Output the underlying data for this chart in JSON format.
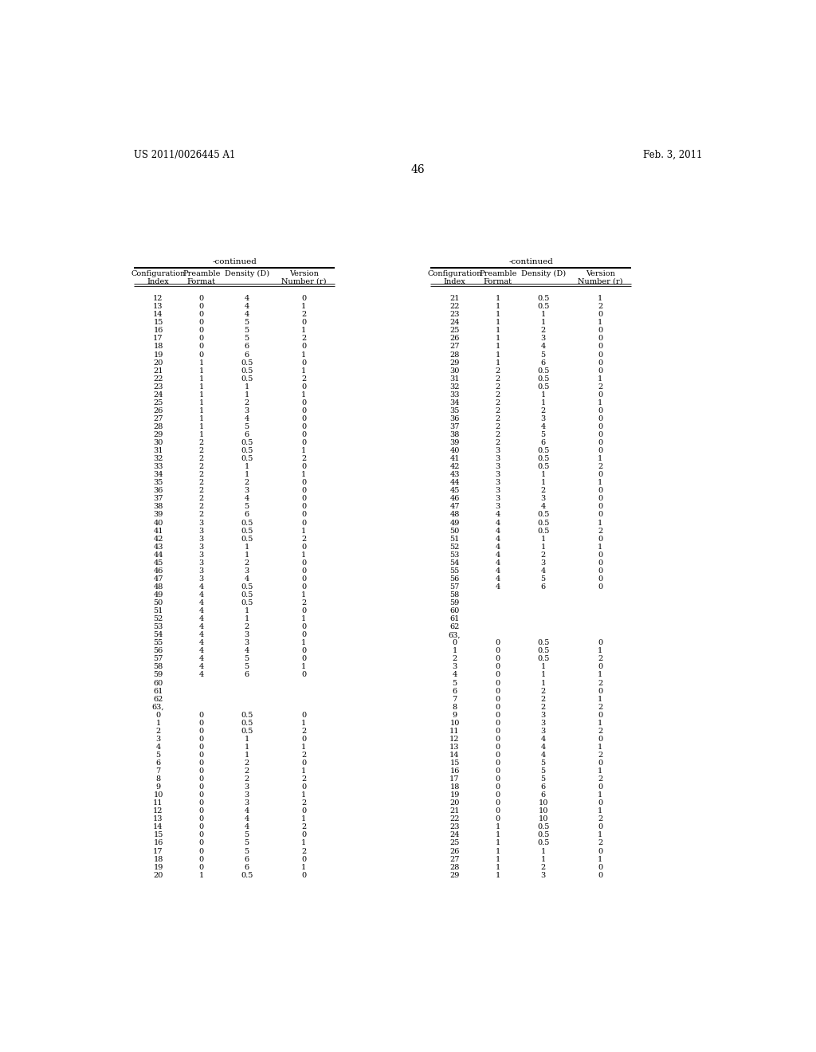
{
  "header_left": "US 2011/0026445 A1",
  "header_right": "Feb. 3, 2011",
  "page_number": "46",
  "continued_label": "-continued",
  "col_headers": [
    "Configuration\nIndex",
    "Preamble\nFormat",
    "Density (D)",
    "Version\nNumber (r)"
  ],
  "left_table_rows": [
    [
      "12",
      "0",
      "4",
      "0"
    ],
    [
      "13",
      "0",
      "4",
      "1"
    ],
    [
      "14",
      "0",
      "4",
      "2"
    ],
    [
      "15",
      "0",
      "5",
      "0"
    ],
    [
      "16",
      "0",
      "5",
      "1"
    ],
    [
      "17",
      "0",
      "5",
      "2"
    ],
    [
      "18",
      "0",
      "6",
      "0"
    ],
    [
      "19",
      "0",
      "6",
      "1"
    ],
    [
      "20",
      "1",
      "0.5",
      "0"
    ],
    [
      "21",
      "1",
      "0.5",
      "1"
    ],
    [
      "22",
      "1",
      "0.5",
      "2"
    ],
    [
      "23",
      "1",
      "1",
      "0"
    ],
    [
      "24",
      "1",
      "1",
      "1"
    ],
    [
      "25",
      "1",
      "2",
      "0"
    ],
    [
      "26",
      "1",
      "3",
      "0"
    ],
    [
      "27",
      "1",
      "4",
      "0"
    ],
    [
      "28",
      "1",
      "5",
      "0"
    ],
    [
      "29",
      "1",
      "6",
      "0"
    ],
    [
      "30",
      "2",
      "0.5",
      "0"
    ],
    [
      "31",
      "2",
      "0.5",
      "1"
    ],
    [
      "32",
      "2",
      "0.5",
      "2"
    ],
    [
      "33",
      "2",
      "1",
      "0"
    ],
    [
      "34",
      "2",
      "1",
      "1"
    ],
    [
      "35",
      "2",
      "2",
      "0"
    ],
    [
      "36",
      "2",
      "3",
      "0"
    ],
    [
      "37",
      "2",
      "4",
      "0"
    ],
    [
      "38",
      "2",
      "5",
      "0"
    ],
    [
      "39",
      "2",
      "6",
      "0"
    ],
    [
      "40",
      "3",
      "0.5",
      "0"
    ],
    [
      "41",
      "3",
      "0.5",
      "1"
    ],
    [
      "42",
      "3",
      "0.5",
      "2"
    ],
    [
      "43",
      "3",
      "1",
      "0"
    ],
    [
      "44",
      "3",
      "1",
      "1"
    ],
    [
      "45",
      "3",
      "2",
      "0"
    ],
    [
      "46",
      "3",
      "3",
      "0"
    ],
    [
      "47",
      "3",
      "4",
      "0"
    ],
    [
      "48",
      "4",
      "0.5",
      "0"
    ],
    [
      "49",
      "4",
      "0.5",
      "1"
    ],
    [
      "50",
      "4",
      "0.5",
      "2"
    ],
    [
      "51",
      "4",
      "1",
      "0"
    ],
    [
      "52",
      "4",
      "1",
      "1"
    ],
    [
      "53",
      "4",
      "2",
      "0"
    ],
    [
      "54",
      "4",
      "3",
      "0"
    ],
    [
      "55",
      "4",
      "3",
      "1"
    ],
    [
      "56",
      "4",
      "4",
      "0"
    ],
    [
      "57",
      "4",
      "5",
      "0"
    ],
    [
      "58",
      "4",
      "5",
      "1"
    ],
    [
      "59",
      "4",
      "6",
      "0"
    ],
    [
      "60",
      "",
      "",
      ""
    ],
    [
      "61",
      "",
      "",
      ""
    ],
    [
      "62",
      "",
      "",
      ""
    ],
    [
      "63,",
      "",
      "",
      ""
    ],
    [
      "0",
      "0",
      "0.5",
      "0"
    ],
    [
      "1",
      "0",
      "0.5",
      "1"
    ],
    [
      "2",
      "0",
      "0.5",
      "2"
    ],
    [
      "3",
      "0",
      "1",
      "0"
    ],
    [
      "4",
      "0",
      "1",
      "1"
    ],
    [
      "5",
      "0",
      "1",
      "2"
    ],
    [
      "6",
      "0",
      "2",
      "0"
    ],
    [
      "7",
      "0",
      "2",
      "1"
    ],
    [
      "8",
      "0",
      "2",
      "2"
    ],
    [
      "9",
      "0",
      "3",
      "0"
    ],
    [
      "10",
      "0",
      "3",
      "1"
    ],
    [
      "11",
      "0",
      "3",
      "2"
    ],
    [
      "12",
      "0",
      "4",
      "0"
    ],
    [
      "13",
      "0",
      "4",
      "1"
    ],
    [
      "14",
      "0",
      "4",
      "2"
    ],
    [
      "15",
      "0",
      "5",
      "0"
    ],
    [
      "16",
      "0",
      "5",
      "1"
    ],
    [
      "17",
      "0",
      "5",
      "2"
    ],
    [
      "18",
      "0",
      "6",
      "0"
    ],
    [
      "19",
      "0",
      "6",
      "1"
    ],
    [
      "20",
      "1",
      "0.5",
      "0"
    ]
  ],
  "right_table_rows": [
    [
      "21",
      "1",
      "0.5",
      "1"
    ],
    [
      "22",
      "1",
      "0.5",
      "2"
    ],
    [
      "23",
      "1",
      "1",
      "0"
    ],
    [
      "24",
      "1",
      "1",
      "1"
    ],
    [
      "25",
      "1",
      "2",
      "0"
    ],
    [
      "26",
      "1",
      "3",
      "0"
    ],
    [
      "27",
      "1",
      "4",
      "0"
    ],
    [
      "28",
      "1",
      "5",
      "0"
    ],
    [
      "29",
      "1",
      "6",
      "0"
    ],
    [
      "30",
      "2",
      "0.5",
      "0"
    ],
    [
      "31",
      "2",
      "0.5",
      "1"
    ],
    [
      "32",
      "2",
      "0.5",
      "2"
    ],
    [
      "33",
      "2",
      "1",
      "0"
    ],
    [
      "34",
      "2",
      "1",
      "1"
    ],
    [
      "35",
      "2",
      "2",
      "0"
    ],
    [
      "36",
      "2",
      "3",
      "0"
    ],
    [
      "37",
      "2",
      "4",
      "0"
    ],
    [
      "38",
      "2",
      "5",
      "0"
    ],
    [
      "39",
      "2",
      "6",
      "0"
    ],
    [
      "40",
      "3",
      "0.5",
      "0"
    ],
    [
      "41",
      "3",
      "0.5",
      "1"
    ],
    [
      "42",
      "3",
      "0.5",
      "2"
    ],
    [
      "43",
      "3",
      "1",
      "0"
    ],
    [
      "44",
      "3",
      "1",
      "1"
    ],
    [
      "45",
      "3",
      "2",
      "0"
    ],
    [
      "46",
      "3",
      "3",
      "0"
    ],
    [
      "47",
      "3",
      "4",
      "0"
    ],
    [
      "48",
      "4",
      "0.5",
      "0"
    ],
    [
      "49",
      "4",
      "0.5",
      "1"
    ],
    [
      "50",
      "4",
      "0.5",
      "2"
    ],
    [
      "51",
      "4",
      "1",
      "0"
    ],
    [
      "52",
      "4",
      "1",
      "1"
    ],
    [
      "53",
      "4",
      "2",
      "0"
    ],
    [
      "54",
      "4",
      "3",
      "0"
    ],
    [
      "55",
      "4",
      "4",
      "0"
    ],
    [
      "56",
      "4",
      "5",
      "0"
    ],
    [
      "57",
      "4",
      "6",
      "0"
    ],
    [
      "58",
      "",
      "",
      ""
    ],
    [
      "59",
      "",
      "",
      ""
    ],
    [
      "60",
      "",
      "",
      ""
    ],
    [
      "61",
      "",
      "",
      ""
    ],
    [
      "62",
      "",
      "",
      ""
    ],
    [
      "63,",
      "",
      "",
      ""
    ],
    [
      "0",
      "0",
      "0.5",
      "0"
    ],
    [
      "1",
      "0",
      "0.5",
      "1"
    ],
    [
      "2",
      "0",
      "0.5",
      "2"
    ],
    [
      "3",
      "0",
      "1",
      "0"
    ],
    [
      "4",
      "0",
      "1",
      "1"
    ],
    [
      "5",
      "0",
      "1",
      "2"
    ],
    [
      "6",
      "0",
      "2",
      "0"
    ],
    [
      "7",
      "0",
      "2",
      "1"
    ],
    [
      "8",
      "0",
      "2",
      "2"
    ],
    [
      "9",
      "0",
      "3",
      "0"
    ],
    [
      "10",
      "0",
      "3",
      "1"
    ],
    [
      "11",
      "0",
      "3",
      "2"
    ],
    [
      "12",
      "0",
      "4",
      "0"
    ],
    [
      "13",
      "0",
      "4",
      "1"
    ],
    [
      "14",
      "0",
      "4",
      "2"
    ],
    [
      "15",
      "0",
      "5",
      "0"
    ],
    [
      "16",
      "0",
      "5",
      "1"
    ],
    [
      "17",
      "0",
      "5",
      "2"
    ],
    [
      "18",
      "0",
      "6",
      "0"
    ],
    [
      "19",
      "0",
      "6",
      "1"
    ],
    [
      "20",
      "0",
      "10",
      "0"
    ],
    [
      "21",
      "0",
      "10",
      "1"
    ],
    [
      "22",
      "0",
      "10",
      "2"
    ],
    [
      "23",
      "1",
      "0.5",
      "0"
    ],
    [
      "24",
      "1",
      "0.5",
      "1"
    ],
    [
      "25",
      "1",
      "0.5",
      "2"
    ],
    [
      "26",
      "1",
      "1",
      "0"
    ],
    [
      "27",
      "1",
      "1",
      "1"
    ],
    [
      "28",
      "1",
      "2",
      "0"
    ],
    [
      "29",
      "1",
      "3",
      "0"
    ]
  ],
  "bg_color": "#ffffff",
  "text_color": "#000000",
  "font_size": 7.0,
  "header_font_size": 8.5
}
